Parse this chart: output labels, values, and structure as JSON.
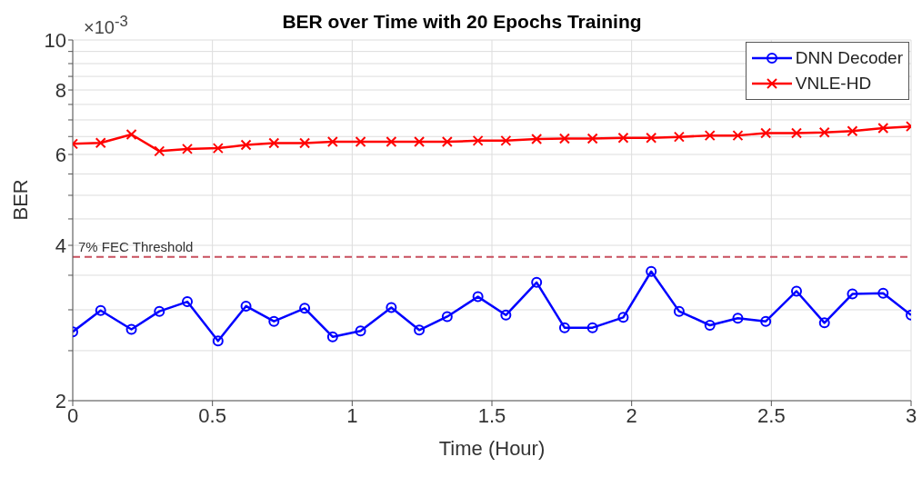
{
  "chart_data": {
    "type": "line",
    "title": "BER over Time with 20 Epochs Training",
    "xlabel": "Time (Hour)",
    "ylabel": "BER",
    "annotations": [
      "×10$^{-3}$"
    ],
    "x": [
      0,
      0.1,
      0.21,
      0.31,
      0.41,
      0.52,
      0.62,
      0.72,
      0.83,
      0.93,
      1.03,
      1.14,
      1.24,
      1.34,
      1.45,
      1.55,
      1.66,
      1.76,
      1.86,
      1.97,
      2.07,
      2.17,
      2.28,
      2.38,
      2.48,
      2.59,
      2.69,
      2.79,
      2.9,
      3
    ],
    "series": [
      {
        "name": "DNN Decoder",
        "color": "#0000ff",
        "marker": "circle",
        "values": [
          2.72,
          2.99,
          2.75,
          2.98,
          3.11,
          2.61,
          3.05,
          2.85,
          3.02,
          2.66,
          2.73,
          3.03,
          2.74,
          2.91,
          3.18,
          2.93,
          3.39,
          2.77,
          2.77,
          2.9,
          3.56,
          2.98,
          2.8,
          2.89,
          2.85,
          3.26,
          2.83,
          3.22,
          3.23,
          2.93
        ]
      },
      {
        "name": "VNLE-HD",
        "color": "#ff0000",
        "marker": "cross",
        "values": [
          6.29,
          6.32,
          6.56,
          6.09,
          6.15,
          6.17,
          6.26,
          6.31,
          6.31,
          6.35,
          6.35,
          6.35,
          6.35,
          6.35,
          6.38,
          6.38,
          6.43,
          6.44,
          6.44,
          6.46,
          6.46,
          6.49,
          6.53,
          6.53,
          6.6,
          6.6,
          6.62,
          6.66,
          6.75,
          6.8
        ]
      }
    ],
    "xlim": [
      0,
      3
    ],
    "xticks": [
      0,
      0.5,
      1,
      1.5,
      2,
      2.5,
      3
    ],
    "ylim": [
      2,
      10
    ],
    "log": true,
    "yticks": [
      2,
      {
        "value": 2.5,
        "label": null
      },
      {
        "value": 3,
        "label": null
      },
      {
        "value": 3.5,
        "label": null
      },
      4,
      {
        "value": 4.5,
        "label": null
      },
      {
        "value": 5,
        "label": null
      },
      {
        "value": 5.5,
        "label": null
      },
      6,
      {
        "value": 6.5,
        "label": null
      },
      {
        "value": 7,
        "label": null
      },
      {
        "value": 7.5,
        "label": null
      },
      8,
      {
        "value": 8.5,
        "label": null
      },
      {
        "value": 9,
        "label": null
      },
      {
        "value": 9.5,
        "label": null
      },
      10
    ],
    "ref_lines": [
      {
        "axis": "y",
        "value": 3.8,
        "label": "7% FEC Threshold",
        "color": "#c8505f",
        "line_style": "dashed"
      }
    ],
    "grid": true,
    "legend": "top right",
    "line_style": "solid"
  }
}
